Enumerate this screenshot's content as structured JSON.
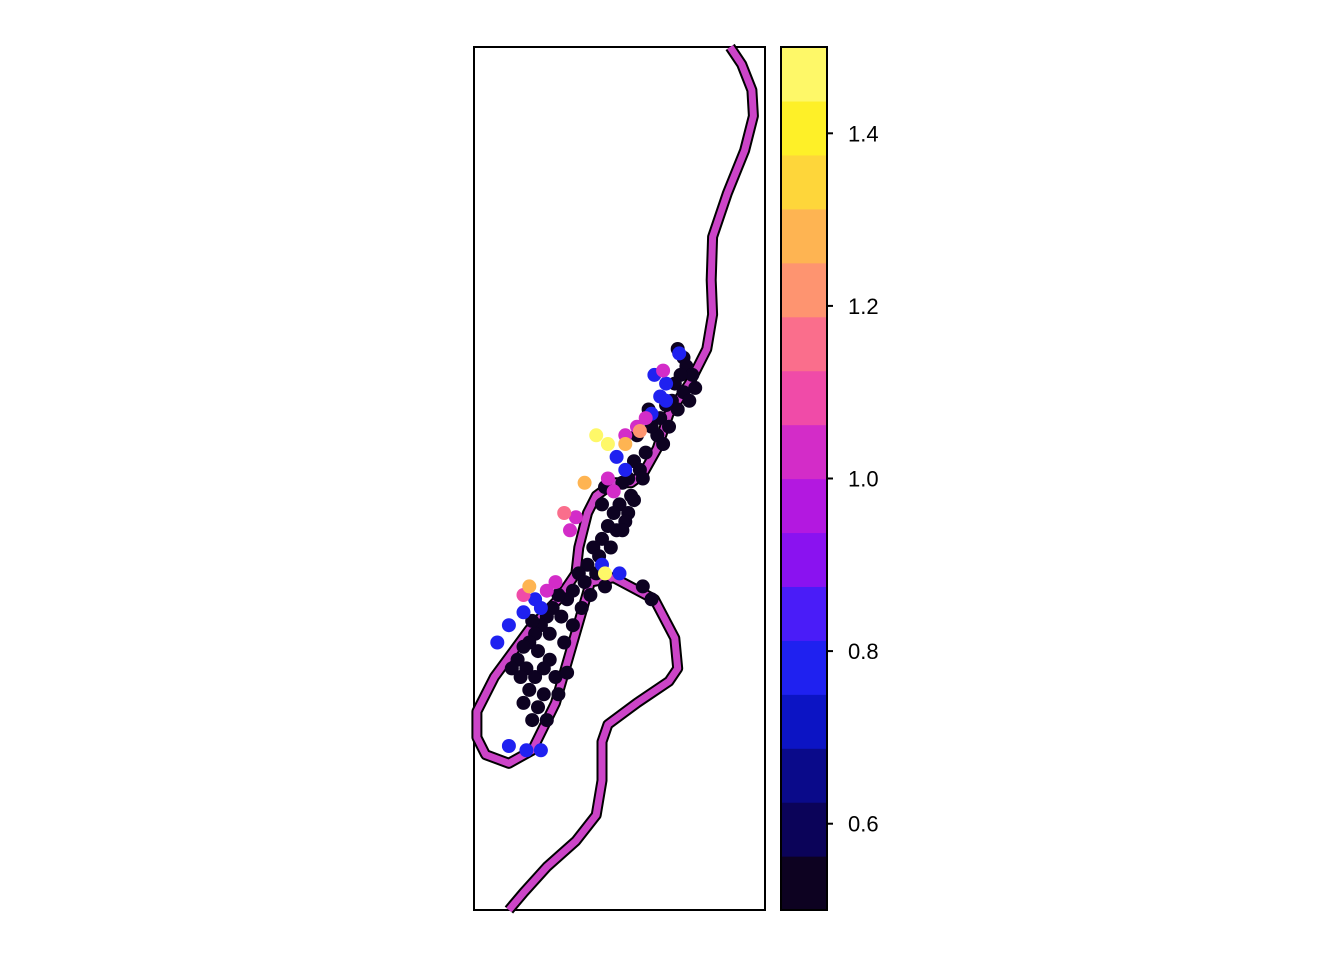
{
  "chart_data": {
    "type": "scatter",
    "title": "",
    "xlabel": "",
    "ylabel": "",
    "xlim": [
      0,
      100
    ],
    "ylim": [
      0,
      100
    ],
    "legend_placement": "right",
    "grid": false,
    "color_scale": {
      "min": 0.5,
      "max": 1.5,
      "ticks": [
        "0.6",
        "0.8",
        "1.0",
        "1.2",
        "1.4"
      ],
      "tick_values": [
        0.6,
        0.8,
        1.0,
        1.2,
        1.4
      ],
      "colors": [
        "#0D0221",
        "#0B0359",
        "#0A0A8A",
        "#0C14C4",
        "#1F21F0",
        "#4A1CF8",
        "#8A12F0",
        "#B318E0",
        "#D32CC8",
        "#F04BA8",
        "#FA6E8C",
        "#FE9470",
        "#FEB452",
        "#FED63A",
        "#FEF028",
        "#FEF868"
      ]
    },
    "river_color": "#CC44C8",
    "river_outline": "#000000",
    "river_path": [
      [
        88,
        100
      ],
      [
        92,
        98
      ],
      [
        95.5,
        95
      ],
      [
        96,
        92
      ],
      [
        93,
        88
      ],
      [
        87,
        83
      ],
      [
        82,
        78
      ],
      [
        81.5,
        73
      ],
      [
        82,
        69
      ],
      [
        80,
        65
      ],
      [
        74,
        61
      ],
      [
        67,
        57.5
      ],
      [
        63,
        53.5
      ],
      [
        58,
        50.5
      ],
      [
        54,
        49.5
      ],
      [
        48,
        49.5
      ],
      [
        42,
        48
      ],
      [
        39,
        46
      ],
      [
        36,
        42
      ],
      [
        35,
        39
      ],
      [
        29,
        36
      ],
      [
        19,
        32.5
      ],
      [
        7,
        27
      ],
      [
        1,
        23
      ],
      [
        1,
        20
      ],
      [
        4,
        18
      ],
      [
        12,
        17
      ],
      [
        20,
        18.5
      ],
      [
        28,
        24
      ],
      [
        40,
        38
      ],
      [
        48,
        38.5
      ],
      [
        62,
        36
      ],
      [
        69,
        31.5
      ],
      [
        70,
        28
      ],
      [
        67,
        26.5
      ],
      [
        56,
        24
      ],
      [
        46,
        21.5
      ],
      [
        44,
        19.5
      ],
      [
        44,
        15
      ],
      [
        42,
        11
      ],
      [
        35,
        8
      ],
      [
        25,
        5
      ],
      [
        17,
        2
      ],
      [
        12,
        0
      ]
    ],
    "points": [
      {
        "x": 70,
        "y": 65,
        "v": 0.5
      },
      {
        "x": 72,
        "y": 64,
        "v": 0.5
      },
      {
        "x": 73,
        "y": 63,
        "v": 0.5
      },
      {
        "x": 75,
        "y": 62,
        "v": 0.5
      },
      {
        "x": 71,
        "y": 62,
        "v": 0.5
      },
      {
        "x": 69,
        "y": 61,
        "v": 0.5
      },
      {
        "x": 72,
        "y": 60,
        "v": 0.5
      },
      {
        "x": 68,
        "y": 59,
        "v": 0.5
      },
      {
        "x": 70,
        "y": 58,
        "v": 0.5
      },
      {
        "x": 66,
        "y": 58.5,
        "v": 0.5
      },
      {
        "x": 64,
        "y": 57,
        "v": 0.5
      },
      {
        "x": 67,
        "y": 56,
        "v": 0.5
      },
      {
        "x": 63,
        "y": 55,
        "v": 0.5
      },
      {
        "x": 61,
        "y": 56,
        "v": 0.5
      },
      {
        "x": 65,
        "y": 54,
        "v": 0.5
      },
      {
        "x": 59,
        "y": 53,
        "v": 0.5
      },
      {
        "x": 55,
        "y": 52,
        "v": 0.5
      },
      {
        "x": 57,
        "y": 51,
        "v": 0.5
      },
      {
        "x": 53,
        "y": 50,
        "v": 0.5
      },
      {
        "x": 51,
        "y": 49.5,
        "v": 0.5
      },
      {
        "x": 54,
        "y": 48,
        "v": 0.5
      },
      {
        "x": 50,
        "y": 47,
        "v": 0.5
      },
      {
        "x": 53,
        "y": 46,
        "v": 0.5
      },
      {
        "x": 48,
        "y": 46,
        "v": 0.5
      },
      {
        "x": 52,
        "y": 45,
        "v": 0.5
      },
      {
        "x": 49,
        "y": 44,
        "v": 0.5
      },
      {
        "x": 46,
        "y": 44.5,
        "v": 0.5
      },
      {
        "x": 44,
        "y": 43,
        "v": 0.5
      },
      {
        "x": 47,
        "y": 42,
        "v": 0.5
      },
      {
        "x": 41,
        "y": 42,
        "v": 0.5
      },
      {
        "x": 43,
        "y": 41,
        "v": 0.5
      },
      {
        "x": 39,
        "y": 40,
        "v": 0.5
      },
      {
        "x": 42,
        "y": 39,
        "v": 0.5
      },
      {
        "x": 36,
        "y": 39,
        "v": 0.5
      },
      {
        "x": 38,
        "y": 38,
        "v": 0.5
      },
      {
        "x": 34,
        "y": 37,
        "v": 0.5
      },
      {
        "x": 32,
        "y": 36,
        "v": 0.5
      },
      {
        "x": 29,
        "y": 36.5,
        "v": 0.5
      },
      {
        "x": 27,
        "y": 35,
        "v": 0.5
      },
      {
        "x": 30,
        "y": 34,
        "v": 0.5
      },
      {
        "x": 25,
        "y": 34,
        "v": 0.5
      },
      {
        "x": 23,
        "y": 33,
        "v": 0.5
      },
      {
        "x": 26,
        "y": 32,
        "v": 0.5
      },
      {
        "x": 21,
        "y": 32,
        "v": 0.5
      },
      {
        "x": 19,
        "y": 31,
        "v": 0.5
      },
      {
        "x": 22,
        "y": 30,
        "v": 0.5
      },
      {
        "x": 17,
        "y": 30.5,
        "v": 0.5
      },
      {
        "x": 15,
        "y": 29,
        "v": 0.5
      },
      {
        "x": 18,
        "y": 28,
        "v": 0.5
      },
      {
        "x": 13,
        "y": 28,
        "v": 0.5
      },
      {
        "x": 16,
        "y": 27,
        "v": 0.5
      },
      {
        "x": 21,
        "y": 27,
        "v": 0.5
      },
      {
        "x": 19,
        "y": 25.5,
        "v": 0.5
      },
      {
        "x": 24,
        "y": 25,
        "v": 0.5
      },
      {
        "x": 17,
        "y": 24,
        "v": 0.5
      },
      {
        "x": 22,
        "y": 23.5,
        "v": 0.5
      },
      {
        "x": 20,
        "y": 22,
        "v": 0.5
      },
      {
        "x": 25,
        "y": 22,
        "v": 0.5
      },
      {
        "x": 28,
        "y": 27,
        "v": 0.5
      },
      {
        "x": 26,
        "y": 29,
        "v": 0.5
      },
      {
        "x": 31,
        "y": 31,
        "v": 0.5
      },
      {
        "x": 34,
        "y": 33,
        "v": 0.5
      },
      {
        "x": 37,
        "y": 35,
        "v": 0.5
      },
      {
        "x": 40,
        "y": 36.5,
        "v": 0.5
      },
      {
        "x": 45,
        "y": 37.5,
        "v": 0.5
      },
      {
        "x": 44,
        "y": 47,
        "v": 0.5
      },
      {
        "x": 56,
        "y": 55,
        "v": 0.5
      },
      {
        "x": 60,
        "y": 58,
        "v": 0.5
      },
      {
        "x": 74,
        "y": 59,
        "v": 0.5
      },
      {
        "x": 76,
        "y": 60.5,
        "v": 0.5
      },
      {
        "x": 58,
        "y": 50,
        "v": 0.5
      },
      {
        "x": 55,
        "y": 47.5,
        "v": 0.5
      },
      {
        "x": 51,
        "y": 44,
        "v": 0.5
      },
      {
        "x": 32,
        "y": 27.5,
        "v": 0.5
      },
      {
        "x": 29,
        "y": 25,
        "v": 0.5
      },
      {
        "x": 58,
        "y": 37.5,
        "v": 0.55
      },
      {
        "x": 61,
        "y": 36,
        "v": 0.55
      },
      {
        "x": 45,
        "y": 49,
        "v": 0.55
      },
      {
        "x": 24,
        "y": 28,
        "v": 0.55
      },
      {
        "x": 20,
        "y": 33.5,
        "v": 0.55
      },
      {
        "x": 70.5,
        "y": 64.5,
        "v": 0.75
      },
      {
        "x": 66,
        "y": 61,
        "v": 0.75
      },
      {
        "x": 64,
        "y": 59.5,
        "v": 0.75
      },
      {
        "x": 61,
        "y": 57.5,
        "v": 0.75
      },
      {
        "x": 44,
        "y": 40,
        "v": 0.75
      },
      {
        "x": 21,
        "y": 36,
        "v": 0.75
      },
      {
        "x": 17,
        "y": 34.5,
        "v": 0.75
      },
      {
        "x": 12,
        "y": 33,
        "v": 0.75
      },
      {
        "x": 8,
        "y": 31,
        "v": 0.75
      },
      {
        "x": 23,
        "y": 35,
        "v": 0.75
      },
      {
        "x": 12,
        "y": 19,
        "v": 0.75
      },
      {
        "x": 18,
        "y": 18.5,
        "v": 0.75
      },
      {
        "x": 23,
        "y": 18.5,
        "v": 0.75
      },
      {
        "x": 50,
        "y": 39,
        "v": 0.75
      },
      {
        "x": 49,
        "y": 52.5,
        "v": 0.75
      },
      {
        "x": 52,
        "y": 51,
        "v": 0.75
      },
      {
        "x": 66,
        "y": 59,
        "v": 0.8
      },
      {
        "x": 62,
        "y": 62,
        "v": 0.8
      },
      {
        "x": 65,
        "y": 62.5,
        "v": 1.0
      },
      {
        "x": 28,
        "y": 38,
        "v": 1.0
      },
      {
        "x": 33,
        "y": 44,
        "v": 1.0
      },
      {
        "x": 35,
        "y": 45.5,
        "v": 1.0
      },
      {
        "x": 56,
        "y": 56,
        "v": 1.0
      },
      {
        "x": 48,
        "y": 48.5,
        "v": 1.05
      },
      {
        "x": 59,
        "y": 57,
        "v": 1.05
      },
      {
        "x": 52,
        "y": 55,
        "v": 1.05
      },
      {
        "x": 46,
        "y": 50,
        "v": 1.05
      },
      {
        "x": 25,
        "y": 37,
        "v": 1.05
      },
      {
        "x": 17,
        "y": 36.5,
        "v": 1.1
      },
      {
        "x": 31,
        "y": 46,
        "v": 1.15
      },
      {
        "x": 57,
        "y": 55.5,
        "v": 1.2
      },
      {
        "x": 52,
        "y": 54,
        "v": 1.25
      },
      {
        "x": 19,
        "y": 37.5,
        "v": 1.25
      },
      {
        "x": 38,
        "y": 49.5,
        "v": 1.25
      },
      {
        "x": 46,
        "y": 54,
        "v": 1.45
      },
      {
        "x": 42,
        "y": 55,
        "v": 1.45
      },
      {
        "x": 45,
        "y": 39,
        "v": 1.5
      }
    ]
  }
}
